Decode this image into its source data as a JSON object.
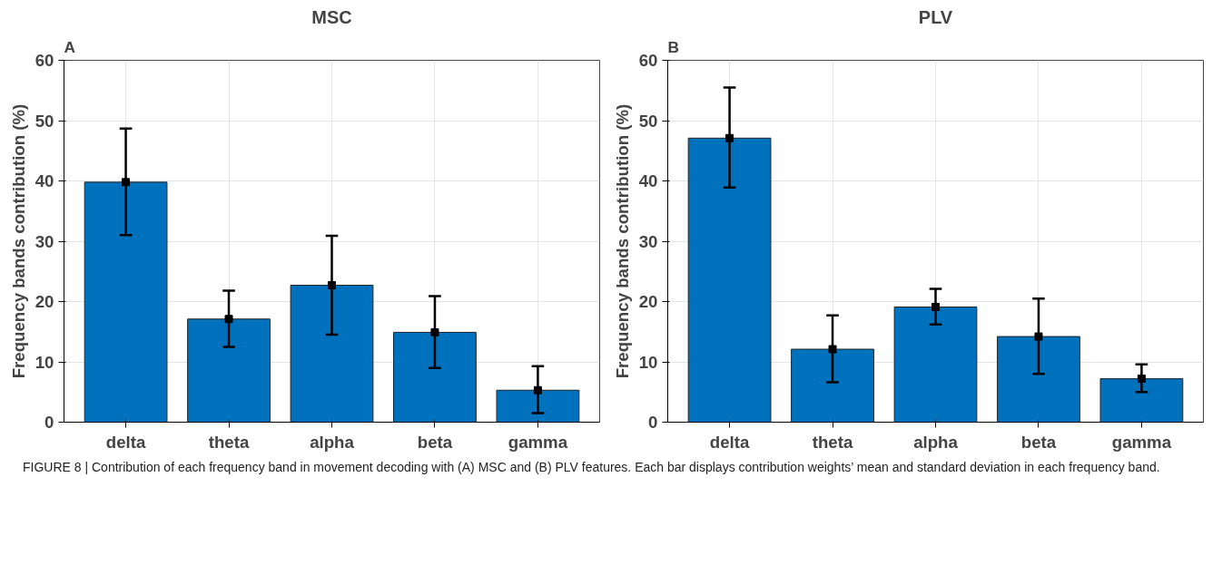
{
  "chart_data": [
    {
      "type": "bar",
      "title": "MSC",
      "ylabel": "Frequency bands contribution (%)",
      "categories": [
        "delta",
        "theta",
        "alpha",
        "beta",
        "gamma"
      ],
      "series": [
        {
          "type": "bar",
          "color": "#0072bd",
          "values": [
            39.8,
            17.1,
            22.7,
            14.9,
            5.3
          ]
        },
        {
          "type": "scatter",
          "color": "#000000",
          "marker": "square",
          "x": [
            "delta",
            "theta",
            "alpha",
            "beta",
            "gamma"
          ],
          "values": [
            39.8,
            17.1,
            22.7,
            14.9,
            5.3
          ],
          "errors": [
            [
              31.0,
              48.7
            ],
            [
              12.5,
              21.8
            ],
            [
              14.5,
              30.9
            ],
            [
              9.0,
              20.9
            ],
            [
              1.5,
              9.3
            ]
          ]
        }
      ],
      "ylim": [
        0,
        60
      ],
      "yticks": [
        0,
        10,
        20,
        30,
        40,
        50,
        60
      ],
      "grid": true,
      "annotations": [
        "A",
        "FIGURE 8 | Contribution of each frequency band in movement decoding with (A) MSC and (B) PLV features. Each bar displays contribution weights’ mean and standard deviation in each frequency band."
      ]
    },
    {
      "type": "bar",
      "title": "PLV",
      "ylabel": "Frequency bands contribution (%)",
      "categories": [
        "delta",
        "theta",
        "alpha",
        "beta",
        "gamma"
      ],
      "series": [
        {
          "type": "bar",
          "color": "#0072bd",
          "values": [
            47.1,
            12.1,
            19.1,
            14.2,
            7.2
          ]
        },
        {
          "type": "scatter",
          "color": "#000000",
          "marker": "square",
          "x": [
            "delta",
            "theta",
            "alpha",
            "beta",
            "gamma"
          ],
          "values": [
            47.1,
            12.1,
            19.1,
            14.2,
            7.2
          ],
          "errors": [
            [
              38.9,
              55.5
            ],
            [
              6.6,
              17.7
            ],
            [
              16.2,
              22.1
            ],
            [
              8.0,
              20.5
            ],
            [
              5.0,
              9.6
            ]
          ]
        }
      ],
      "ylim": [
        0,
        60
      ],
      "yticks": [
        0,
        10,
        20,
        30,
        40,
        50,
        60
      ],
      "grid": true,
      "annotations": [
        "B"
      ]
    }
  ]
}
